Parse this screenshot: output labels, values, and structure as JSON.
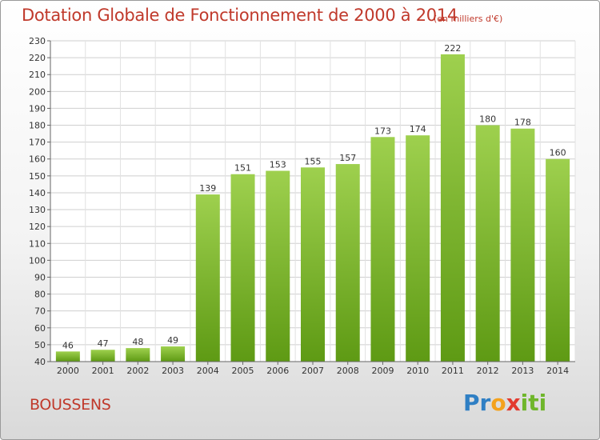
{
  "header": {
    "title": "Dotation Globale de Fonctionnement de 2000 à 2014",
    "subtitle": "(en milliers d'€)"
  },
  "footer": {
    "place": "BOUSSENS",
    "brand_parts": [
      "Pr",
      "o",
      "x",
      "iti"
    ]
  },
  "colors": {
    "title": "#c0392b",
    "bar_top": "#9ed04e",
    "bar_bottom": "#5e9a14"
  },
  "chart_data": {
    "type": "bar",
    "categories": [
      "2000",
      "2001",
      "2002",
      "2003",
      "2004",
      "2005",
      "2006",
      "2007",
      "2008",
      "2009",
      "2010",
      "2011",
      "2012",
      "2013",
      "2014"
    ],
    "values": [
      46,
      47,
      48,
      49,
      139,
      151,
      153,
      155,
      157,
      173,
      174,
      222,
      180,
      178,
      160
    ],
    "title": "Dotation Globale de Fonctionnement de 2000 à 2014",
    "subtitle": "(en milliers d'€)",
    "ylim": [
      40,
      230
    ],
    "yticks": [
      40,
      50,
      60,
      70,
      80,
      90,
      100,
      110,
      120,
      130,
      140,
      150,
      160,
      170,
      180,
      190,
      200,
      210,
      220,
      230
    ],
    "grid": true
  }
}
